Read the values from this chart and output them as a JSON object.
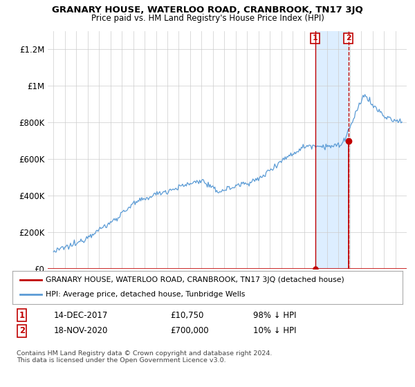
{
  "title": "GRANARY HOUSE, WATERLOO ROAD, CRANBROOK, TN17 3JQ",
  "subtitle": "Price paid vs. HM Land Registry's House Price Index (HPI)",
  "hpi_label": "HPI: Average price, detached house, Tunbridge Wells",
  "property_label": "GRANARY HOUSE, WATERLOO ROAD, CRANBROOK, TN17 3JQ (detached house)",
  "sale1_date_x": 2017.96,
  "sale1_price": 10750,
  "sale2_date_x": 2020.88,
  "sale2_price": 700000,
  "sale1_row": [
    "1",
    "14-DEC-2017",
    "£10,750",
    "98% ↓ HPI"
  ],
  "sale2_row": [
    "2",
    "18-NOV-2020",
    "£700,000",
    "10% ↓ HPI"
  ],
  "footer": "Contains HM Land Registry data © Crown copyright and database right 2024.\nThis data is licensed under the Open Government Licence v3.0.",
  "hpi_color": "#5b9bd5",
  "sale_color": "#c00000",
  "shade_color": "#ddeeff",
  "background_color": "#ffffff",
  "grid_color": "#cccccc",
  "ylim": [
    0,
    1300000
  ],
  "xlim_start": 1994.5,
  "xlim_end": 2026.0
}
